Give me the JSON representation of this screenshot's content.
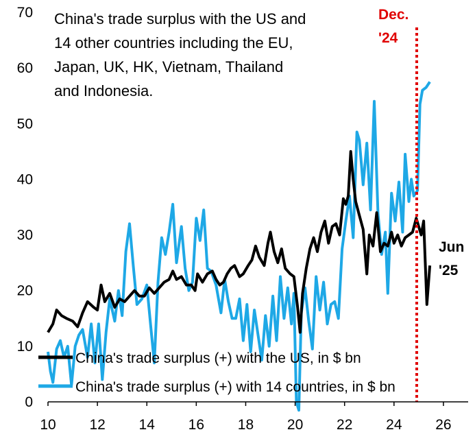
{
  "chart_data": {
    "type": "line",
    "title_lines": [
      "China's trade surplus with the US and",
      "14  other countries including the EU,",
      "Japan, UK, HK, Vietnam, Thailand",
      "and Indonesia."
    ],
    "xlim": [
      2010,
      2027
    ],
    "ylim": [
      0,
      70
    ],
    "x_ticks": [
      "10",
      "12",
      "14",
      "16",
      "18",
      "20",
      "22",
      "24",
      "26"
    ],
    "y_ticks": [
      "0",
      "10",
      "20",
      "30",
      "40",
      "50",
      "60",
      "70"
    ],
    "grid": false,
    "legend_position": "bottom-left",
    "series": [
      {
        "name": "China's trade surplus (+) with the US, in $ bn",
        "color": "#000000",
        "points": [
          [
            2010.0,
            12.5
          ],
          [
            2010.2,
            14.0
          ],
          [
            2010.35,
            16.5
          ],
          [
            2010.55,
            15.5
          ],
          [
            2010.75,
            15.0
          ],
          [
            2011.0,
            14.5
          ],
          [
            2011.2,
            13.5
          ],
          [
            2011.4,
            16.0
          ],
          [
            2011.6,
            18.0
          ],
          [
            2011.85,
            17.0
          ],
          [
            2012.0,
            16.5
          ],
          [
            2012.15,
            21.0
          ],
          [
            2012.3,
            18.0
          ],
          [
            2012.5,
            19.5
          ],
          [
            2012.7,
            17.0
          ],
          [
            2012.9,
            18.5
          ],
          [
            2013.1,
            18.0
          ],
          [
            2013.3,
            19.0
          ],
          [
            2013.5,
            20.0
          ],
          [
            2013.7,
            19.0
          ],
          [
            2013.9,
            19.0
          ],
          [
            2014.1,
            20.5
          ],
          [
            2014.3,
            19.5
          ],
          [
            2014.5,
            20.5
          ],
          [
            2014.7,
            21.5
          ],
          [
            2014.9,
            22.0
          ],
          [
            2015.05,
            23.5
          ],
          [
            2015.2,
            22.0
          ],
          [
            2015.4,
            22.5
          ],
          [
            2015.6,
            21.0
          ],
          [
            2015.8,
            21.0
          ],
          [
            2015.95,
            20.0
          ],
          [
            2016.05,
            23.0
          ],
          [
            2016.25,
            21.5
          ],
          [
            2016.45,
            23.0
          ],
          [
            2016.65,
            23.5
          ],
          [
            2016.8,
            22.0
          ],
          [
            2016.95,
            21.0
          ],
          [
            2017.1,
            21.5
          ],
          [
            2017.25,
            23.0
          ],
          [
            2017.4,
            24.0
          ],
          [
            2017.55,
            24.5
          ],
          [
            2017.75,
            22.5
          ],
          [
            2017.9,
            23.0
          ],
          [
            2018.1,
            24.5
          ],
          [
            2018.25,
            25.5
          ],
          [
            2018.4,
            28.0
          ],
          [
            2018.55,
            26.0
          ],
          [
            2018.75,
            24.5
          ],
          [
            2018.9,
            28.5
          ],
          [
            2019.0,
            30.5
          ],
          [
            2019.15,
            27.0
          ],
          [
            2019.3,
            25.0
          ],
          [
            2019.45,
            27.5
          ],
          [
            2019.6,
            24.0
          ],
          [
            2019.8,
            23.0
          ],
          [
            2019.95,
            22.5
          ],
          [
            2020.1,
            17.0
          ],
          [
            2020.2,
            12.5
          ],
          [
            2020.3,
            19.5
          ],
          [
            2020.45,
            24.0
          ],
          [
            2020.6,
            27.5
          ],
          [
            2020.75,
            29.5
          ],
          [
            2020.9,
            27.0
          ],
          [
            2021.05,
            30.5
          ],
          [
            2021.2,
            32.5
          ],
          [
            2021.35,
            28.5
          ],
          [
            2021.5,
            31.5
          ],
          [
            2021.65,
            32.0
          ],
          [
            2021.8,
            30.0
          ],
          [
            2021.95,
            36.5
          ],
          [
            2022.05,
            35.5
          ],
          [
            2022.15,
            37.0
          ],
          [
            2022.25,
            45.0
          ],
          [
            2022.35,
            40.0
          ],
          [
            2022.45,
            36.0
          ],
          [
            2022.6,
            33.5
          ],
          [
            2022.75,
            31.0
          ],
          [
            2022.9,
            23.0
          ],
          [
            2023.0,
            30.0
          ],
          [
            2023.15,
            28.0
          ],
          [
            2023.3,
            34.0
          ],
          [
            2023.45,
            27.0
          ],
          [
            2023.6,
            28.5
          ],
          [
            2023.75,
            28.0
          ],
          [
            2023.9,
            30.5
          ],
          [
            2024.0,
            28.5
          ],
          [
            2024.15,
            30.0
          ],
          [
            2024.3,
            28.0
          ],
          [
            2024.45,
            29.5
          ],
          [
            2024.6,
            30.0
          ],
          [
            2024.75,
            30.5
          ],
          [
            2024.9,
            33.0
          ],
          [
            2025.0,
            31.5
          ],
          [
            2025.1,
            30.0
          ],
          [
            2025.2,
            32.5
          ],
          [
            2025.33,
            17.5
          ],
          [
            2025.45,
            24.5
          ]
        ]
      },
      {
        "name": "China's trade surplus (+) with 14 countries, in $ bn",
        "color": "#1ea8e6",
        "points": [
          [
            2010.0,
            9.0
          ],
          [
            2010.1,
            5.5
          ],
          [
            2010.2,
            3.5
          ],
          [
            2010.35,
            9.5
          ],
          [
            2010.5,
            11.0
          ],
          [
            2010.65,
            8.0
          ],
          [
            2010.8,
            10.0
          ],
          [
            2010.95,
            3.0
          ],
          [
            2011.1,
            10.0
          ],
          [
            2011.25,
            12.0
          ],
          [
            2011.4,
            13.0
          ],
          [
            2011.6,
            8.0
          ],
          [
            2011.75,
            14.0
          ],
          [
            2011.9,
            7.0
          ],
          [
            2012.05,
            14.0
          ],
          [
            2012.2,
            4.0
          ],
          [
            2012.35,
            12.5
          ],
          [
            2012.5,
            18.5
          ],
          [
            2012.7,
            14.5
          ],
          [
            2012.85,
            20.0
          ],
          [
            2013.0,
            15.5
          ],
          [
            2013.15,
            27.0
          ],
          [
            2013.3,
            32.0
          ],
          [
            2013.45,
            24.5
          ],
          [
            2013.6,
            17.5
          ],
          [
            2013.8,
            18.5
          ],
          [
            2014.0,
            21.0
          ],
          [
            2014.15,
            14.0
          ],
          [
            2014.3,
            7.0
          ],
          [
            2014.45,
            21.5
          ],
          [
            2014.6,
            29.5
          ],
          [
            2014.75,
            26.5
          ],
          [
            2014.9,
            30.5
          ],
          [
            2015.05,
            35.5
          ],
          [
            2015.2,
            25.0
          ],
          [
            2015.4,
            31.5
          ],
          [
            2015.55,
            24.0
          ],
          [
            2015.7,
            20.0
          ],
          [
            2015.85,
            21.5
          ],
          [
            2016.0,
            33.0
          ],
          [
            2016.15,
            29.0
          ],
          [
            2016.3,
            34.5
          ],
          [
            2016.45,
            24.0
          ],
          [
            2016.6,
            23.5
          ],
          [
            2016.8,
            21.0
          ],
          [
            2017.0,
            16.0
          ],
          [
            2017.15,
            22.0
          ],
          [
            2017.3,
            18.0
          ],
          [
            2017.45,
            15.0
          ],
          [
            2017.6,
            15.0
          ],
          [
            2017.75,
            18.5
          ],
          [
            2017.9,
            11.0
          ],
          [
            2018.05,
            17.5
          ],
          [
            2018.2,
            9.0
          ],
          [
            2018.35,
            16.5
          ],
          [
            2018.5,
            12.0
          ],
          [
            2018.65,
            7.5
          ],
          [
            2018.8,
            15.5
          ],
          [
            2018.95,
            10.0
          ],
          [
            2019.1,
            19.0
          ],
          [
            2019.25,
            11.0
          ],
          [
            2019.4,
            22.5
          ],
          [
            2019.55,
            15.0
          ],
          [
            2019.7,
            20.5
          ],
          [
            2019.85,
            14.0
          ],
          [
            2019.95,
            19.5
          ],
          [
            2020.05,
            0.0
          ],
          [
            2020.15,
            -1.5
          ],
          [
            2020.25,
            16.0
          ],
          [
            2020.4,
            20.5
          ],
          [
            2020.55,
            14.5
          ],
          [
            2020.7,
            9.5
          ],
          [
            2020.85,
            22.5
          ],
          [
            2021.0,
            16.5
          ],
          [
            2021.15,
            21.5
          ],
          [
            2021.3,
            14.0
          ],
          [
            2021.45,
            17.5
          ],
          [
            2021.6,
            18.0
          ],
          [
            2021.75,
            15.0
          ],
          [
            2021.9,
            27.5
          ],
          [
            2022.05,
            32.5
          ],
          [
            2022.2,
            37.0
          ],
          [
            2022.35,
            29.5
          ],
          [
            2022.5,
            48.5
          ],
          [
            2022.6,
            47.0
          ],
          [
            2022.75,
            39.0
          ],
          [
            2022.9,
            46.5
          ],
          [
            2023.05,
            34.5
          ],
          [
            2023.2,
            54.0
          ],
          [
            2023.35,
            34.0
          ],
          [
            2023.5,
            26.5
          ],
          [
            2023.65,
            30.5
          ],
          [
            2023.75,
            19.5
          ],
          [
            2023.9,
            37.5
          ],
          [
            2024.05,
            32.5
          ],
          [
            2024.2,
            39.5
          ],
          [
            2024.35,
            30.5
          ],
          [
            2024.45,
            44.5
          ],
          [
            2024.6,
            36.0
          ],
          [
            2024.7,
            40.0
          ],
          [
            2024.8,
            37.0
          ],
          [
            2024.95,
            38.0
          ],
          [
            2025.05,
            53.5
          ],
          [
            2025.15,
            56.0
          ],
          [
            2025.3,
            56.5
          ],
          [
            2025.45,
            57.5
          ]
        ]
      }
    ],
    "annotations": {
      "dec_label": [
        "Dec.",
        "'24"
      ],
      "dec_x": 2024.92,
      "jun_label": [
        "Jun",
        "'25"
      ]
    }
  }
}
